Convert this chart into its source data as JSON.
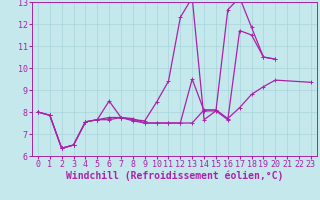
{
  "xlabel": "Windchill (Refroidissement éolien,°C)",
  "xlim": [
    -0.5,
    23.5
  ],
  "ylim": [
    6,
    13
  ],
  "xticks": [
    0,
    1,
    2,
    3,
    4,
    5,
    6,
    7,
    8,
    9,
    10,
    11,
    12,
    13,
    14,
    15,
    16,
    17,
    18,
    19,
    20,
    21,
    22,
    23
  ],
  "yticks": [
    6,
    7,
    8,
    9,
    10,
    11,
    12,
    13
  ],
  "bg_color": "#c5e8ed",
  "grid_color": "#a8d4da",
  "line_color": "#aa22aa",
  "line1_x": [
    0,
    1,
    2,
    3,
    4,
    5,
    6,
    7,
    8,
    9,
    10,
    11,
    12,
    13,
    14,
    15,
    16,
    17,
    18,
    19,
    20,
    23
  ],
  "line1_y": [
    8.0,
    7.85,
    6.35,
    6.5,
    7.55,
    7.65,
    7.65,
    7.75,
    7.6,
    7.5,
    7.5,
    7.5,
    7.5,
    7.5,
    8.1,
    8.1,
    7.7,
    8.2,
    8.8,
    9.15,
    9.45,
    9.35
  ],
  "line2_x": [
    0,
    1,
    2,
    3,
    4,
    5,
    6,
    7,
    8,
    9,
    10,
    11,
    12,
    13,
    14,
    15,
    16,
    17,
    18,
    19,
    20
  ],
  "line2_y": [
    8.0,
    7.85,
    6.35,
    6.5,
    7.55,
    7.65,
    8.5,
    7.75,
    7.65,
    7.6,
    8.45,
    9.4,
    12.3,
    13.2,
    7.65,
    8.05,
    12.65,
    13.2,
    11.85,
    10.5,
    10.4
  ],
  "line3_x": [
    0,
    1,
    2,
    3,
    4,
    5,
    6,
    7,
    8,
    9,
    10,
    11,
    12,
    13,
    14,
    15,
    16,
    17,
    18,
    19,
    20
  ],
  "line3_y": [
    8.0,
    7.85,
    6.35,
    6.5,
    7.55,
    7.65,
    7.75,
    7.75,
    7.7,
    7.5,
    7.5,
    7.5,
    7.5,
    9.5,
    8.05,
    8.05,
    7.65,
    11.7,
    11.5,
    10.5,
    10.4
  ],
  "marker_size": 3,
  "line_width": 0.9,
  "font_size": 7,
  "tick_font_size": 6
}
